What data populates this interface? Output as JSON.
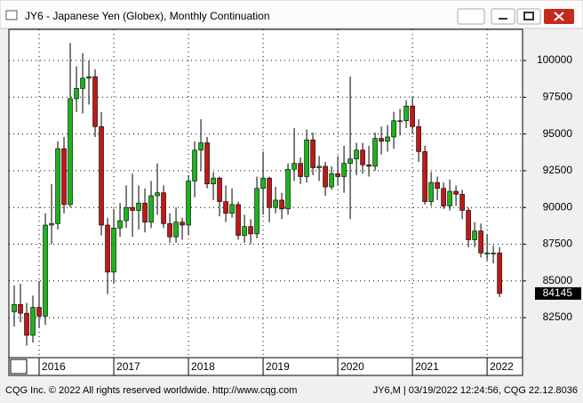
{
  "chart_data": {
    "type": "candlestick",
    "title": "JY6 - Japanese Yen (Globex), Monthly Continuation",
    "open": [
      82900,
      83400,
      82800,
      81300,
      83200,
      82600,
      88800,
      88900,
      94000,
      90200,
      97400,
      98100,
      98800,
      98900,
      95500,
      88800,
      85600,
      88600,
      89100,
      90000,
      89800,
      90300,
      89000,
      90800,
      91000,
      88900,
      88000,
      89000,
      88800,
      91800,
      93900,
      94400,
      91600,
      92000,
      90400,
      89600,
      90200,
      88100,
      88700,
      88200,
      91300,
      92000,
      90000,
      90500,
      89900,
      92600,
      93000,
      92100,
      94600,
      92700,
      92800,
      91400,
      92300,
      92100,
      93000,
      93300,
      93900,
      92900,
      92800,
      94700,
      94500,
      94800,
      95900,
      95900,
      96900,
      95500,
      93800,
      90400,
      91700,
      91300,
      90100,
      91100,
      90900,
      89800,
      87800,
      88400,
      86900,
      86900,
      86900
    ],
    "high": [
      84700,
      84800,
      83500,
      84000,
      85000,
      89600,
      91600,
      94500,
      94800,
      101200,
      99600,
      100500,
      100000,
      99400,
      96500,
      89300,
      89900,
      90300,
      91500,
      92300,
      91500,
      91300,
      91800,
      93000,
      91500,
      89600,
      90000,
      89300,
      92200,
      94500,
      96000,
      94800,
      92400,
      92100,
      91500,
      91300,
      90400,
      89500,
      89200,
      92100,
      93800,
      92100,
      91400,
      91000,
      93000,
      95400,
      93400,
      95300,
      95100,
      93500,
      93100,
      92800,
      93500,
      94200,
      98900,
      94400,
      94400,
      94200,
      95100,
      95500,
      95600,
      96500,
      96700,
      97300,
      97500,
      96000,
      94200,
      92400,
      92100,
      91700,
      91900,
      91500,
      91200,
      90000,
      89000,
      88900,
      88200,
      87400,
      87300
    ],
    "low": [
      81900,
      82200,
      80600,
      80800,
      81800,
      82000,
      87500,
      88500,
      89600,
      90000,
      96500,
      96400,
      97000,
      94800,
      88100,
      84100,
      84800,
      88000,
      88600,
      88000,
      88500,
      88300,
      88600,
      89500,
      88600,
      87600,
      87600,
      87800,
      88100,
      90700,
      92500,
      91300,
      90500,
      89400,
      89000,
      89300,
      87800,
      87600,
      87500,
      87900,
      89500,
      89000,
      89600,
      89200,
      89500,
      91800,
      91600,
      91700,
      92200,
      91800,
      90800,
      91200,
      91500,
      91000,
      89200,
      92200,
      92300,
      92100,
      92500,
      93600,
      93800,
      94000,
      94900,
      95400,
      95000,
      93100,
      90200,
      90100,
      90500,
      89900,
      89800,
      90100,
      89200,
      87300,
      87300,
      86600,
      86400,
      86200,
      83900
    ],
    "close": [
      83400,
      82800,
      81300,
      83200,
      82600,
      88800,
      88900,
      94000,
      90200,
      97400,
      98100,
      98800,
      98900,
      95500,
      88800,
      85600,
      88600,
      89100,
      90000,
      89800,
      90300,
      89000,
      90800,
      91000,
      88900,
      88000,
      89000,
      88800,
      91800,
      93900,
      94400,
      91600,
      92000,
      90400,
      89600,
      90200,
      88100,
      88700,
      88200,
      91300,
      92000,
      90000,
      90500,
      89900,
      92600,
      93000,
      92100,
      94600,
      92700,
      92800,
      91400,
      92300,
      92100,
      93000,
      93300,
      93900,
      92900,
      92800,
      94700,
      94500,
      94800,
      95900,
      95900,
      96900,
      95500,
      93800,
      90400,
      91700,
      91300,
      90100,
      91100,
      90900,
      89800,
      87800,
      88400,
      86900,
      86900,
      86900,
      84145
    ],
    "up_color": "#1cb41c",
    "down_color": "#c01818",
    "ylim": [
      79780,
      102120
    ],
    "yticks": [
      82500,
      85000,
      87500,
      90000,
      92500,
      95000,
      97500,
      100000
    ],
    "xlim": [
      -0.86,
      81.7
    ],
    "xticks": [
      {
        "value": 4,
        "label": "2016"
      },
      {
        "value": 16,
        "label": "2017"
      },
      {
        "value": 28,
        "label": "2018"
      },
      {
        "value": 40,
        "label": "2019"
      },
      {
        "value": 52,
        "label": "2020"
      },
      {
        "value": 64,
        "label": "2021"
      },
      {
        "value": 76,
        "label": "2022"
      }
    ],
    "grid": true
  },
  "footer": {
    "left": "CQG Inc. © 2022 All rights reserved worldwide. http://www.cqg.com",
    "right": "JY6,M | 03/19/2022 12:24:56, CQG 22.12.8036"
  }
}
